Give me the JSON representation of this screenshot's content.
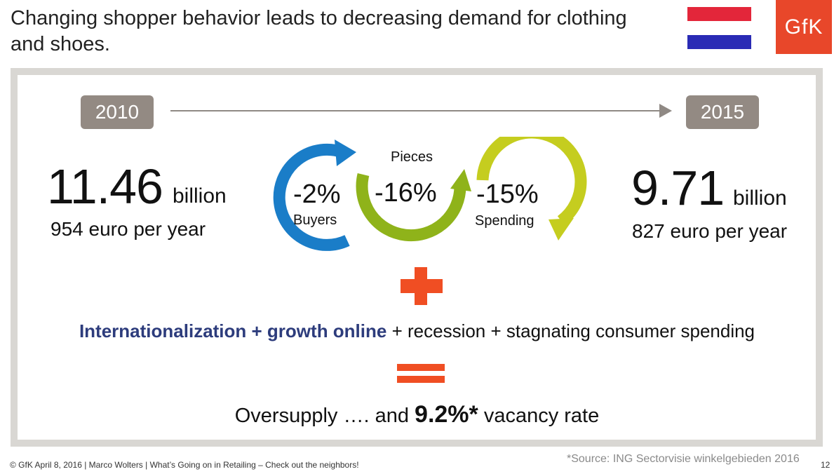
{
  "title": "Changing shopper behavior leads to decreasing demand for clothing and shoes.",
  "brand": {
    "logo_text": "GfK",
    "logo_color": "#e8472a"
  },
  "flag_colors": [
    "#e3263a",
    "#ffffff",
    "#2a2bb5"
  ],
  "timeline": {
    "start_year": "2010",
    "end_year": "2015"
  },
  "left_stat": {
    "value": "11.46",
    "unit": "billion",
    "per_year": "954 euro per year"
  },
  "right_stat": {
    "value": "9.71",
    "unit": "billion",
    "per_year": "827 euro per year"
  },
  "cycles": [
    {
      "value": "-2%",
      "label": "Buyers",
      "color": "#1a7dc8"
    },
    {
      "value": "-16%",
      "label": "Pieces",
      "color": "#8fb31a"
    },
    {
      "value": "-15%",
      "label": "Spending",
      "color": "#c5cd1f"
    }
  ],
  "drivers": {
    "highlight": "Internationalization + growth online",
    "rest": " + recession + stagnating consumer spending"
  },
  "result": {
    "prefix": "Oversupply …. and ",
    "value": "9.2%*",
    "suffix": " vacancy rate"
  },
  "footer": {
    "text": "© GfK April 8, 2016 | Marco Wolters | What’s Going on in Retailing – Check out the neighbors!",
    "source": "*Source: ING Sectorvisie winkelgebieden 2016",
    "page": "12"
  },
  "accent_color": "#f04e23"
}
